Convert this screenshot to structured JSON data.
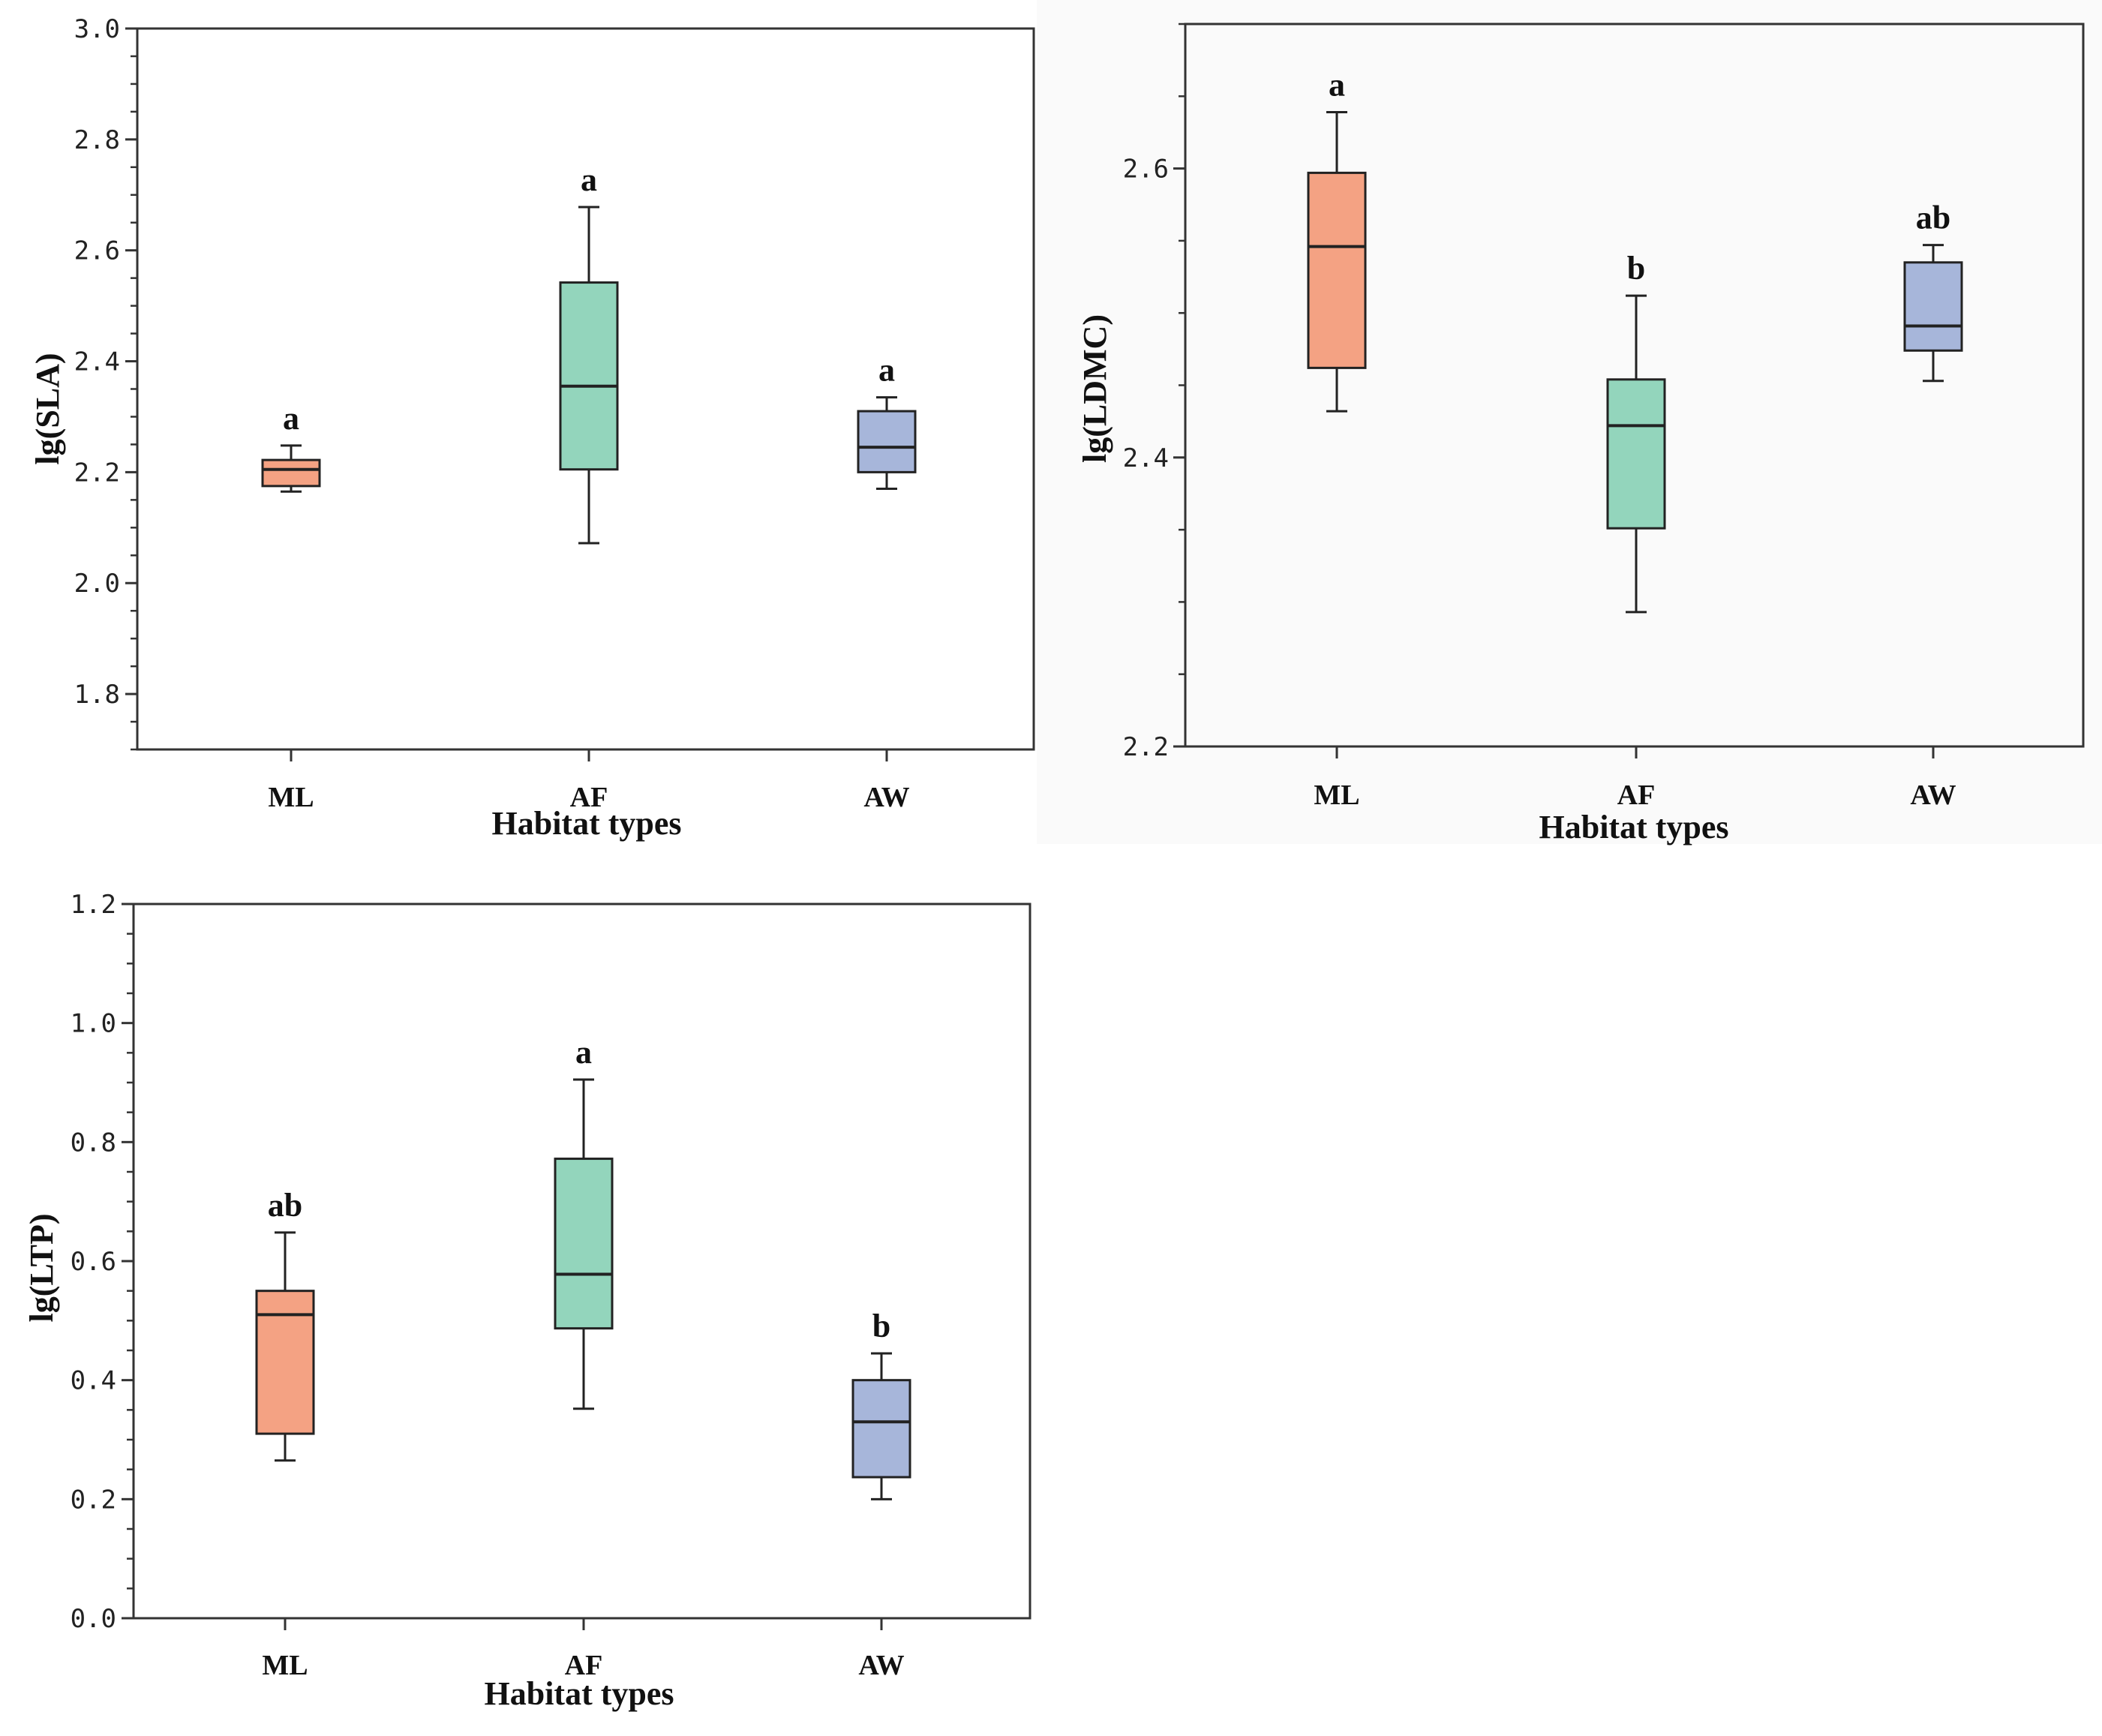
{
  "chart_data": [
    {
      "type": "box",
      "id": "sla",
      "title": "",
      "xlabel": "Habitat types",
      "ylabel": "lg(SLA)",
      "ylim": [
        1.7,
        3.0
      ],
      "yticks": [
        1.8,
        2.0,
        2.2,
        2.4,
        2.6,
        2.8,
        3.0
      ],
      "ytick_labels": [
        "1.8",
        "2.0",
        "2.2",
        "2.4",
        "2.6",
        "2.8",
        "3.0"
      ],
      "ytick_minor": 0.05,
      "categories": [
        "ML",
        "AF",
        "AW"
      ],
      "boxes": [
        {
          "category": "ML",
          "min": 2.165,
          "q1": 2.175,
          "median": 2.205,
          "q3": 2.222,
          "max": 2.248,
          "color": "#F4A283",
          "sig": "a"
        },
        {
          "category": "AF",
          "min": 2.072,
          "q1": 2.205,
          "median": 2.355,
          "q3": 2.542,
          "max": 2.678,
          "color": "#93D5BC",
          "sig": "a"
        },
        {
          "category": "AW",
          "min": 2.17,
          "q1": 2.2,
          "median": 2.245,
          "q3": 2.31,
          "max": 2.335,
          "color": "#A7B6DA",
          "sig": "a"
        }
      ]
    },
    {
      "type": "box",
      "id": "ldmc",
      "title": "",
      "xlabel": "Habitat types",
      "ylabel": "lg(LDMC)",
      "ylim": [
        2.2,
        2.7
      ],
      "yticks": [
        2.2,
        2.4,
        2.6
      ],
      "ytick_labels": [
        "2.2",
        "2.4",
        "2.6"
      ],
      "ytick_minor": 0.05,
      "categories": [
        "ML",
        "AF",
        "AW"
      ],
      "boxes": [
        {
          "category": "ML",
          "min": 2.432,
          "q1": 2.462,
          "median": 2.546,
          "q3": 2.597,
          "max": 2.639,
          "color": "#F4A283",
          "sig": "a"
        },
        {
          "category": "AF",
          "min": 2.293,
          "q1": 2.351,
          "median": 2.422,
          "q3": 2.454,
          "max": 2.512,
          "color": "#93D5BC",
          "sig": "b"
        },
        {
          "category": "AW",
          "min": 2.453,
          "q1": 2.474,
          "median": 2.491,
          "q3": 2.535,
          "max": 2.547,
          "color": "#A7B6DA",
          "sig": "ab"
        }
      ]
    },
    {
      "type": "box",
      "id": "ltp",
      "title": "",
      "xlabel": "Habitat types",
      "ylabel": "lg(LTP)",
      "ylim": [
        0.0,
        1.2
      ],
      "yticks": [
        0.0,
        0.2,
        0.4,
        0.6,
        0.8,
        1.0,
        1.2
      ],
      "ytick_labels": [
        "0.0",
        "0.2",
        "0.4",
        "0.6",
        "0.8",
        "1.0",
        "1.2"
      ],
      "ytick_minor": 0.05,
      "categories": [
        "ML",
        "AF",
        "AW"
      ],
      "boxes": [
        {
          "category": "ML",
          "min": 0.265,
          "q1": 0.31,
          "median": 0.51,
          "q3": 0.55,
          "max": 0.648,
          "color": "#F4A283",
          "sig": "ab"
        },
        {
          "category": "AF",
          "min": 0.352,
          "q1": 0.487,
          "median": 0.578,
          "q3": 0.772,
          "max": 0.905,
          "color": "#93D5BC",
          "sig": "a"
        },
        {
          "category": "AW",
          "min": 0.2,
          "q1": 0.237,
          "median": 0.33,
          "q3": 0.4,
          "max": 0.445,
          "color": "#A7B6DA",
          "sig": "b"
        }
      ]
    }
  ]
}
